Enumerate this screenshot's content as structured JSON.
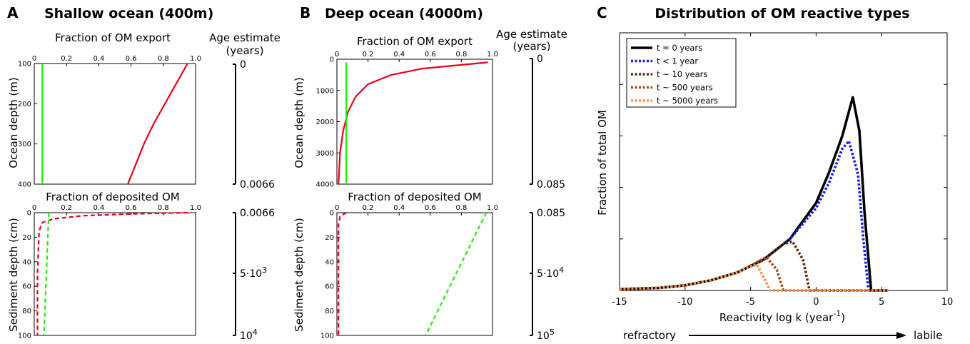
{
  "panels": {
    "A": {
      "letter": "A",
      "title": "Shallow ocean (400m)",
      "top_title": "Fraction of OM export",
      "top_ylabel": "Ocean depth (m)",
      "bottom_title": "Fraction of deposited OM",
      "bottom_ylabel": "Sediment depth (cm)",
      "age_title_line1": "Age estimate",
      "age_title_line2": "(years)",
      "age_top": [
        "0",
        "0.0066"
      ],
      "age_bottom": [
        "0.0066",
        "5·10",
        "10"
      ],
      "age_bottom_exp": [
        "3",
        "4"
      ]
    },
    "B": {
      "letter": "B",
      "title": "Deep ocean (4000m)",
      "top_title": "Fraction of OM export",
      "top_ylabel": "Ocean depth (m)",
      "bottom_title": "Fraction of deposited OM",
      "bottom_ylabel": "Sediment depth (cm)",
      "age_title_line1": "Age estimate",
      "age_title_line2": "(years)",
      "age_top": [
        "0",
        "0.085"
      ],
      "age_bottom": [
        "0.085",
        "5·10",
        "10"
      ],
      "age_bottom_exp": [
        "4",
        "5"
      ]
    },
    "C": {
      "letter": "C",
      "title": "Distribution of OM reactive types",
      "ylabel": "Fraction of total OM",
      "xlabel": "Reactivity log k (year",
      "xlabel_sup": "-1",
      "xlabel_close": ")",
      "arrow_left": "refractory",
      "arrow_right": "labile"
    }
  },
  "colors": {
    "red": "#e8001a",
    "green": "#22ee11",
    "black": "#000000",
    "blue": "#1a1aee",
    "brown_dark": "#5a2b08",
    "brown": "#a8480e",
    "orange": "#f7904a"
  },
  "chart_data": [
    {
      "type": "line",
      "title": "Fraction of OM export",
      "ylabel": "Ocean depth (m)",
      "xlim": [
        0,
        1.0
      ],
      "ylim": [
        100,
        400
      ],
      "x_ticks": [
        "0",
        "0.2",
        "0.4",
        "0.6",
        "0.8",
        "1.0"
      ],
      "y_ticks": [
        "100",
        "200",
        "300",
        "400"
      ],
      "series": [
        {
          "color": "red",
          "style": "solid",
          "x": [
            0.95,
            0.88,
            0.81,
            0.74,
            0.68,
            0.63,
            0.58
          ],
          "y": [
            100,
            150,
            200,
            250,
            300,
            350,
            400
          ]
        },
        {
          "color": "green",
          "style": "solid",
          "x": [
            0.05,
            0.05
          ],
          "y": [
            100,
            400
          ]
        }
      ]
    },
    {
      "type": "line",
      "title": "Fraction of deposited OM",
      "ylabel": "Sediment depth (cm)",
      "xlim": [
        0,
        1.0
      ],
      "ylim": [
        0,
        100
      ],
      "x_ticks": [
        "0",
        "0.2",
        "0.4",
        "0.6",
        "0.8",
        "1.0"
      ],
      "y_ticks": [
        "0",
        "20",
        "40",
        "60",
        "80",
        "100"
      ],
      "series": [
        {
          "color": "red",
          "style": "dashed",
          "x": [
            0.95,
            0.6,
            0.3,
            0.12,
            0.05,
            0.03,
            0.02,
            0.02
          ],
          "y": [
            0,
            1,
            2.5,
            5,
            8,
            15,
            50,
            100
          ]
        },
        {
          "color": "green",
          "style": "dashed",
          "x": [
            0.09,
            0.075,
            0.06
          ],
          "y": [
            0,
            50,
            100
          ]
        }
      ]
    },
    {
      "type": "line",
      "title": "Fraction of OM export",
      "ylabel": "Ocean depth (m)",
      "xlim": [
        0,
        1.0
      ],
      "ylim": [
        0,
        4000
      ],
      "x_ticks": [
        "0",
        "0.2",
        "0.4",
        "0.6",
        "0.8",
        "1.0"
      ],
      "y_ticks": [
        "0",
        "1000",
        "2000",
        "3000",
        "4000"
      ],
      "series": [
        {
          "color": "red",
          "style": "solid",
          "x": [
            0.97,
            0.55,
            0.35,
            0.2,
            0.12,
            0.07,
            0.04,
            0.02,
            0.01
          ],
          "y": [
            100,
            300,
            500,
            800,
            1200,
            1700,
            2300,
            3000,
            4000
          ]
        },
        {
          "color": "green",
          "style": "solid",
          "x": [
            0.06,
            0.06
          ],
          "y": [
            100,
            4000
          ]
        }
      ]
    },
    {
      "type": "line",
      "title": "Fraction of deposited OM",
      "ylabel": "Sediment depth (cm)",
      "xlim": [
        0,
        1.0
      ],
      "ylim": [
        0,
        100
      ],
      "x_ticks": [
        "0",
        "0.2",
        "0.4",
        "0.6",
        "0.8",
        "1.0"
      ],
      "y_ticks": [
        "0",
        "20",
        "40",
        "60",
        "80",
        "100"
      ],
      "series": [
        {
          "color": "red",
          "style": "dashed",
          "x": [
            0.06,
            0.02,
            0.01,
            0.01
          ],
          "y": [
            0,
            3,
            10,
            100
          ]
        },
        {
          "color": "green",
          "style": "dashed",
          "x": [
            0.96,
            0.57
          ],
          "y": [
            0,
            100
          ]
        }
      ]
    },
    {
      "type": "line",
      "title": "Distribution of OM reactive types",
      "xlabel": "Reactivity log k (year-1)",
      "ylabel": "Fraction of total OM",
      "xlim": [
        -15,
        10
      ],
      "ylim": [
        0,
        1
      ],
      "x_ticks": [
        "-15",
        "-10",
        "-5",
        "0",
        "5",
        "10"
      ],
      "legend_position": "top-left",
      "series": [
        {
          "name": "t = 0 years",
          "color": "black",
          "style": "solid",
          "x": [
            -15,
            -12,
            -10,
            -8,
            -6,
            -4,
            -2,
            0,
            1,
            2,
            2.8,
            3.3,
            3.7,
            4.2,
            5.5
          ],
          "y": [
            0.005,
            0.01,
            0.02,
            0.04,
            0.07,
            0.12,
            0.2,
            0.34,
            0.46,
            0.6,
            0.75,
            0.62,
            0.3,
            0.0,
            0.0
          ]
        },
        {
          "name": "t < 1 year",
          "color": "blue",
          "style": "dotted",
          "x": [
            -15,
            -12,
            -10,
            -8,
            -6,
            -4,
            -2,
            0,
            1,
            2,
            2.5,
            3.2,
            3.6,
            4.0,
            5.5
          ],
          "y": [
            0.005,
            0.01,
            0.02,
            0.04,
            0.07,
            0.12,
            0.2,
            0.32,
            0.42,
            0.55,
            0.58,
            0.45,
            0.2,
            0.0,
            0.0
          ]
        },
        {
          "name": "t ~ 10 years",
          "color": "brown_dark",
          "style": "dotted",
          "x": [
            -15,
            -12,
            -10,
            -8,
            -6,
            -4,
            -2.5,
            -1.8,
            -1.0,
            -0.5,
            5.5
          ],
          "y": [
            0.005,
            0.01,
            0.02,
            0.04,
            0.07,
            0.12,
            0.18,
            0.19,
            0.12,
            0.0,
            0.0
          ]
        },
        {
          "name": "t ~ 500 years",
          "color": "brown",
          "style": "dotted",
          "x": [
            -15,
            -12,
            -10,
            -8,
            -6,
            -4.5,
            -3.8,
            -3.0,
            -2.5,
            5.5
          ],
          "y": [
            0.005,
            0.01,
            0.02,
            0.04,
            0.07,
            0.11,
            0.13,
            0.08,
            0.0,
            0.0
          ]
        },
        {
          "name": "t ~ 5000 years",
          "color": "orange",
          "style": "dotted",
          "x": [
            -15,
            -12,
            -10,
            -8,
            -6,
            -5.2,
            -4.5,
            -4.0,
            -3.5,
            5.5
          ],
          "y": [
            0.005,
            0.01,
            0.02,
            0.04,
            0.07,
            0.09,
            0.1,
            0.05,
            0.0,
            0.0
          ]
        }
      ]
    }
  ]
}
